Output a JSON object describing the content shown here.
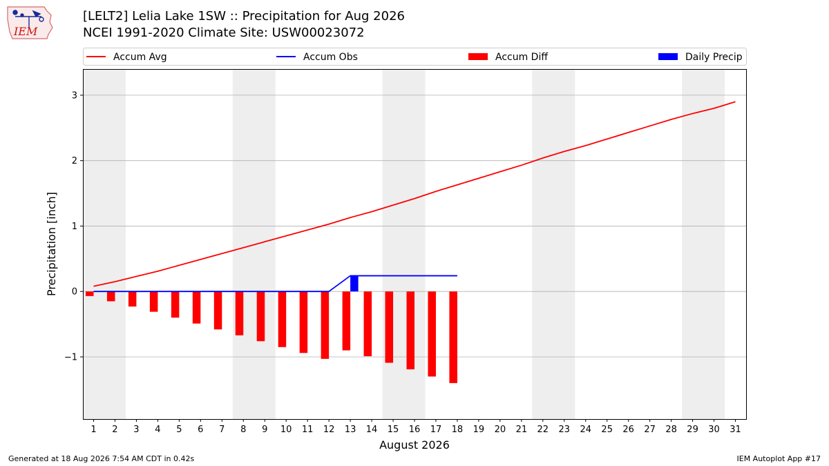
{
  "page": {
    "logo_text": "IEM",
    "title_line1": "[LELT2] Lelia Lake 1SW :: Precipitation for Aug 2026",
    "title_line2": "NCEI 1991-2020 Climate Site: USW00023072",
    "footer_left": "Generated at 18 Aug 2026 7:54 AM CDT in 0.42s",
    "footer_right": "IEM Autoplot App #17"
  },
  "chart_data": {
    "type": "bar",
    "xlabel": "August 2026",
    "ylabel": "Precipitation [inch]",
    "ylim": [
      -1.95,
      3.4
    ],
    "yticks": [
      -1,
      0,
      1,
      2,
      3
    ],
    "ytick_labels": [
      "−1",
      "0",
      "1",
      "2",
      "3"
    ],
    "xlim": [
      0.5,
      31.5
    ],
    "days": [
      1,
      2,
      3,
      4,
      5,
      6,
      7,
      8,
      9,
      10,
      11,
      12,
      13,
      14,
      15,
      16,
      17,
      18,
      19,
      20,
      21,
      22,
      23,
      24,
      25,
      26,
      27,
      28,
      29,
      30,
      31
    ],
    "weekend_bands": [
      [
        0.5,
        2.5
      ],
      [
        7.5,
        9.5
      ],
      [
        14.5,
        16.5
      ],
      [
        21.5,
        23.5
      ],
      [
        28.5,
        30.5
      ]
    ],
    "grid": "horizontal",
    "legend": {
      "placement": "top",
      "entries": [
        {
          "label": "Accum Avg",
          "kind": "line",
          "color": "#ff0000"
        },
        {
          "label": "Accum Obs",
          "kind": "line",
          "color": "#0000ff"
        },
        {
          "label": "Accum Diff",
          "kind": "bar",
          "color": "#ff0000"
        },
        {
          "label": "Daily Precip",
          "kind": "bar",
          "color": "#0000ff"
        }
      ]
    },
    "series": [
      {
        "name": "Accum Avg",
        "kind": "line",
        "color": "#ff0000",
        "x": [
          1,
          2,
          3,
          4,
          5,
          6,
          7,
          8,
          9,
          10,
          11,
          12,
          13,
          14,
          15,
          16,
          17,
          18,
          19,
          20,
          21,
          22,
          23,
          24,
          25,
          26,
          27,
          28,
          29,
          30,
          31
        ],
        "values": [
          0.08,
          0.15,
          0.23,
          0.31,
          0.4,
          0.49,
          0.58,
          0.67,
          0.76,
          0.85,
          0.94,
          1.03,
          1.13,
          1.22,
          1.32,
          1.42,
          1.53,
          1.63,
          1.73,
          1.83,
          1.93,
          2.04,
          2.14,
          2.23,
          2.33,
          2.43,
          2.53,
          2.63,
          2.72,
          2.8,
          2.9
        ]
      },
      {
        "name": "Accum Obs",
        "kind": "line",
        "color": "#0000ff",
        "x": [
          1,
          2,
          3,
          4,
          5,
          6,
          7,
          8,
          9,
          10,
          11,
          12,
          13,
          14,
          15,
          16,
          17,
          18
        ],
        "values": [
          0,
          0,
          0,
          0,
          0,
          0,
          0,
          0,
          0,
          0,
          0,
          0,
          0.24,
          0.24,
          0.24,
          0.24,
          0.24,
          0.24
        ]
      },
      {
        "name": "Accum Diff",
        "kind": "bar",
        "color": "#ff0000",
        "x": [
          1,
          2,
          3,
          4,
          5,
          6,
          7,
          8,
          9,
          10,
          11,
          12,
          13,
          14,
          15,
          16,
          17,
          18
        ],
        "values": [
          -0.07,
          -0.15,
          -0.23,
          -0.31,
          -0.4,
          -0.49,
          -0.58,
          -0.67,
          -0.76,
          -0.85,
          -0.94,
          -1.03,
          -0.9,
          -0.99,
          -1.09,
          -1.19,
          -1.3,
          -1.4
        ]
      },
      {
        "name": "Daily Precip",
        "kind": "bar",
        "color": "#0000ff",
        "x": [
          13
        ],
        "values": [
          0.24
        ]
      }
    ]
  }
}
